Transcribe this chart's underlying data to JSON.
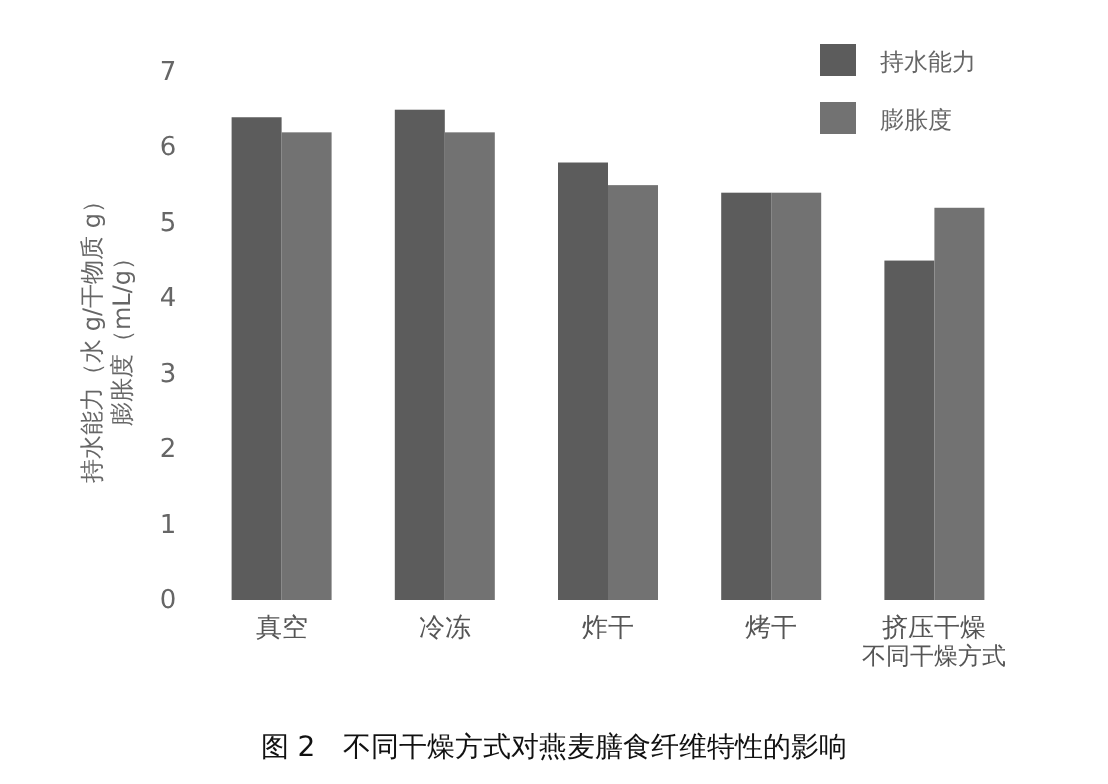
{
  "chart_data": {
    "type": "bar",
    "title": "图 2　不同干燥方式对燕麦膳食纤维特性的影响",
    "xlabel": "不同干燥方式",
    "ylabel": "持水能力（水 g/干物质 g）膨胀度（mL/g）",
    "categories": [
      "真空",
      "冷冻",
      "炸干",
      "烤干",
      "挤压干燥"
    ],
    "series": [
      {
        "name": "持水能力",
        "color": "#5c5c5c",
        "values": [
          6.4,
          6.5,
          5.8,
          5.4,
          4.5
        ]
      },
      {
        "name": "膨胀度",
        "color": "#727272",
        "values": [
          6.2,
          6.2,
          5.5,
          5.4,
          5.2
        ]
      }
    ],
    "ylim": [
      0,
      7
    ],
    "yticks": [
      0,
      1,
      2,
      3,
      4,
      5,
      6,
      7
    ],
    "legend": "top right",
    "grid": false
  }
}
